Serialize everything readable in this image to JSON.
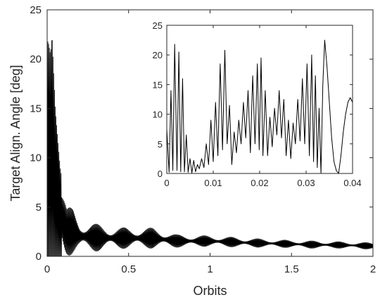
{
  "chart_data": [
    {
      "type": "line",
      "title": "",
      "xlabel": "Orbits",
      "ylabel": "Target Align. Angle [deg]",
      "xlim": [
        0,
        2
      ],
      "ylim": [
        0,
        25
      ],
      "xticks": [
        0,
        0.5,
        1,
        1.5,
        2
      ],
      "xtick_labels": [
        "0",
        "0.5",
        "1",
        "1.5",
        "2"
      ],
      "yticks": [
        0,
        5,
        10,
        15,
        20,
        25
      ],
      "ytick_labels": [
        "0",
        "5",
        "10",
        "15",
        "20",
        "25"
      ],
      "grid": false,
      "color": "#000000",
      "series": [
        {
          "description": "rapid oscillation whose upper envelope decays with orbits",
          "envelope": {
            "x": [
              0,
              0.01,
              0.02,
              0.03,
              0.05,
              0.08,
              0.12,
              0.16,
              0.2,
              0.3,
              0.4,
              0.5,
              0.65,
              0.8,
              1.0,
              1.2,
              1.4,
              1.6,
              1.8,
              2.0
            ],
            "y_max": [
              22.0,
              21.5,
              20.5,
              22.5,
              15.0,
              9.0,
              5.0,
              4.9,
              3.8,
              3.3,
              3.0,
              2.9,
              2.9,
              2.2,
              2.1,
              1.9,
              1.7,
              1.6,
              1.5,
              1.4
            ],
            "y_min": [
              0,
              0,
              0,
              0,
              0,
              0,
              0,
              0.2,
              0.3,
              0.5,
              0.7,
              0.8,
              0.8,
              0.9,
              1.0,
              0.9,
              0.9,
              0.8,
              0.8,
              0.7
            ]
          },
          "oscillation_period_orbits": 0.0045,
          "beat_period_orbits": 0.165
        }
      ]
    },
    {
      "type": "line",
      "title": "",
      "xlabel": "",
      "ylabel": "",
      "xlim": [
        0,
        0.04
      ],
      "ylim": [
        0,
        25
      ],
      "xticks": [
        0,
        0.01,
        0.02,
        0.03,
        0.04
      ],
      "xtick_labels": [
        "0",
        "0.01",
        "0.02",
        "0.03",
        "0.04"
      ],
      "yticks": [
        0,
        5,
        10,
        15,
        20,
        25
      ],
      "ytick_labels": [
        "0",
        "5",
        "10",
        "15",
        "20",
        "25"
      ],
      "grid": false,
      "color": "#000000",
      "series": [
        {
          "x": [
            0,
            0.0005,
            0.0009,
            0.0013,
            0.0017,
            0.0022,
            0.0026,
            0.003,
            0.0034,
            0.0038,
            0.0042,
            0.0046,
            0.005,
            0.0054,
            0.0058,
            0.0062,
            0.0066,
            0.007,
            0.0075,
            0.008,
            0.0085,
            0.009,
            0.0095,
            0.01,
            0.0105,
            0.011,
            0.0115,
            0.012,
            0.0125,
            0.013,
            0.0135,
            0.014,
            0.0145,
            0.015,
            0.0155,
            0.016,
            0.0165,
            0.017,
            0.0175,
            0.018,
            0.0185,
            0.019,
            0.0195,
            0.0199,
            0.0203,
            0.0207,
            0.0212,
            0.0217,
            0.0222,
            0.0227,
            0.0232,
            0.0237,
            0.0242,
            0.0247,
            0.0252,
            0.0257,
            0.0262,
            0.0267,
            0.0272,
            0.0277,
            0.0282,
            0.0287,
            0.0292,
            0.0297,
            0.0302,
            0.0307,
            0.0312,
            0.0316,
            0.032,
            0.0324,
            0.0328,
            0.0332,
            0.0336,
            0.034,
            0.0345,
            0.035,
            0.0355,
            0.036,
            0.0365,
            0.037,
            0.0375,
            0.038,
            0.0385,
            0.039,
            0.0395,
            0.04
          ],
          "y": [
            7.5,
            0.2,
            14.0,
            0.5,
            21.8,
            0.5,
            20.5,
            0.3,
            16.0,
            0.3,
            6.5,
            0.2,
            2.5,
            0.1,
            2.2,
            0.3,
            1.5,
            0.8,
            2.5,
            1.0,
            5.0,
            1.5,
            9.0,
            2.0,
            12.0,
            3.0,
            18.5,
            4.0,
            20.8,
            5.0,
            11.5,
            1.5,
            7.0,
            3.5,
            9.0,
            5.0,
            12.0,
            6.0,
            14.0,
            3.5,
            16.5,
            5.0,
            18.5,
            4.0,
            19.5,
            3.0,
            14.0,
            3.0,
            9.5,
            4.5,
            11.0,
            6.5,
            14.0,
            6.0,
            12.5,
            3.0,
            9.0,
            2.5,
            8.5,
            5.0,
            12.5,
            5.5,
            16.0,
            5.0,
            18.5,
            3.0,
            20.0,
            2.0,
            16.5,
            1.0,
            11.0,
            0.0,
            15.0,
            22.5,
            18.0,
            12.0,
            6.0,
            2.0,
            0.5,
            0.0,
            3.0,
            7.0,
            10.0,
            12.0,
            12.8,
            12.0
          ]
        }
      ]
    }
  ]
}
